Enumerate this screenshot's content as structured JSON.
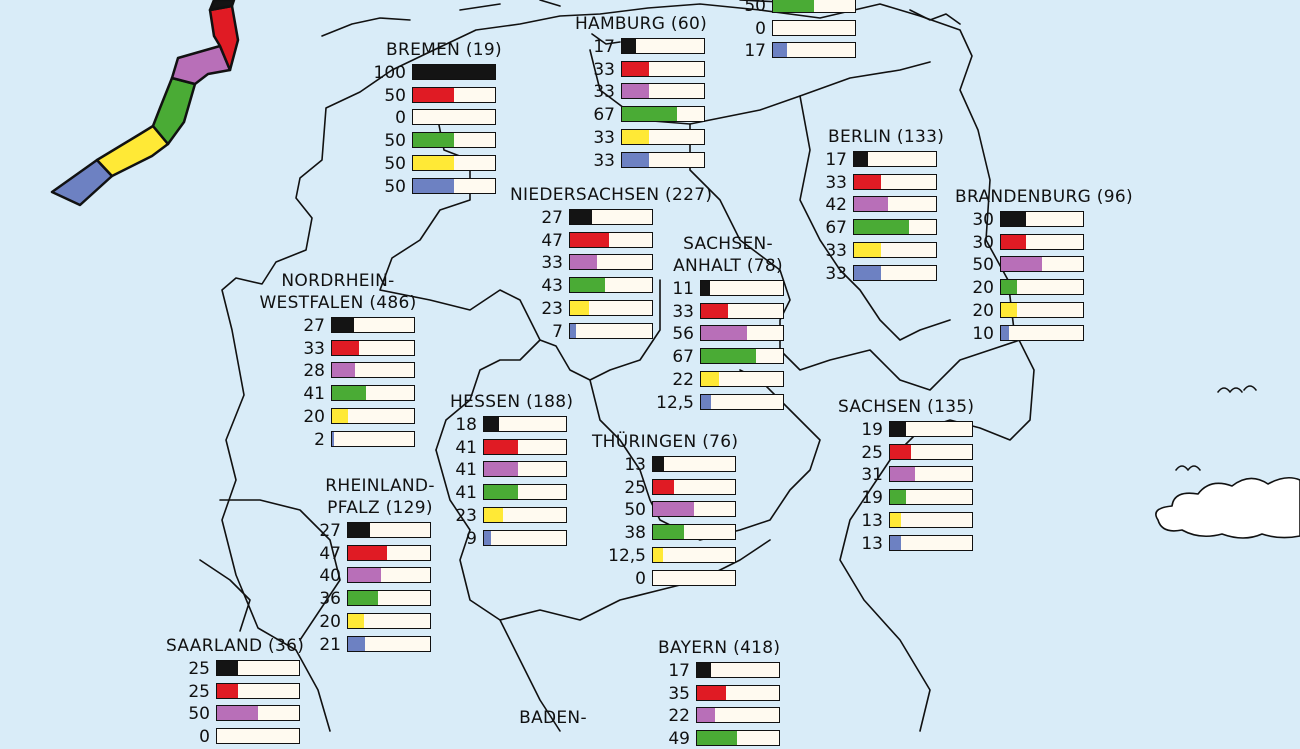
{
  "colors": {
    "ocean": "#d9ecf8",
    "land": "#d9ecf8",
    "border": "#111111",
    "bar_bg": "#fffaf0",
    "series": [
      "#141414",
      "#e01b24",
      "#b86fb8",
      "#4aab35",
      "#ffe936",
      "#6d81c2"
    ],
    "ribbon": [
      "#6d81c2",
      "#ffe936",
      "#4aab35",
      "#b86fb8",
      "#e01b24",
      "#141414"
    ]
  },
  "chart_data": {
    "type": "bar",
    "value_max": 100,
    "series_colors": [
      "#141414",
      "#e01b24",
      "#b86fb8",
      "#4aab35",
      "#ffe936",
      "#6d81c2"
    ],
    "states": [
      {
        "name": "BREMEN (19)",
        "values": [
          "100",
          "50",
          "0",
          "50",
          "50",
          "50"
        ]
      },
      {
        "name": "HAMBURG (60)",
        "values": [
          "17",
          "33",
          "33",
          "67",
          "33",
          "33"
        ]
      },
      {
        "name": "NIEDERSACHSEN (227)",
        "values": [
          "27",
          "47",
          "33",
          "43",
          "23",
          "7"
        ]
      },
      {
        "name": "BERLIN (133)",
        "values": [
          "17",
          "33",
          "42",
          "67",
          "33",
          "33"
        ]
      },
      {
        "name": "BRANDENBURG (96)",
        "values": [
          "30",
          "30",
          "50",
          "20",
          "20",
          "10"
        ]
      },
      {
        "name": "SACHSEN-ANHALT (78)",
        "name_lines": [
          "SACHSEN-",
          "ANHALT (78)"
        ],
        "values": [
          "11",
          "33",
          "56",
          "67",
          "22",
          "12,5"
        ]
      },
      {
        "name": "NORDRHEIN-WESTFALEN (486)",
        "name_lines": [
          "NORDRHEIN-",
          "WESTFALEN (486)"
        ],
        "values": [
          "27",
          "33",
          "28",
          "41",
          "20",
          "2"
        ]
      },
      {
        "name": "HESSEN (188)",
        "values": [
          "18",
          "41",
          "41",
          "41",
          "23",
          "9"
        ]
      },
      {
        "name": "THÜRINGEN (76)",
        "values": [
          "13",
          "25",
          "50",
          "38",
          "12,5",
          "0"
        ]
      },
      {
        "name": "SACHSEN (135)",
        "values": [
          "19",
          "25",
          "31",
          "19",
          "13",
          "13"
        ]
      },
      {
        "name": "RHEINLAND-PFALZ (129)",
        "name_lines": [
          "RHEINLAND-",
          "PFALZ (129)"
        ],
        "values": [
          "27",
          "47",
          "40",
          "36",
          "20",
          "21"
        ]
      },
      {
        "name": "SAARLAND (36)",
        "values": [
          "25",
          "25",
          "50",
          "0"
        ]
      },
      {
        "name": "BAYERN (418)",
        "values": [
          "17",
          "35",
          "22",
          "49"
        ]
      },
      {
        "name": "BADEN-",
        "name_lines": [
          "BADEN-"
        ],
        "values": []
      },
      {
        "name": "",
        "values": [
          "50",
          "0",
          "17"
        ],
        "offset_rows": -4
      }
    ]
  }
}
